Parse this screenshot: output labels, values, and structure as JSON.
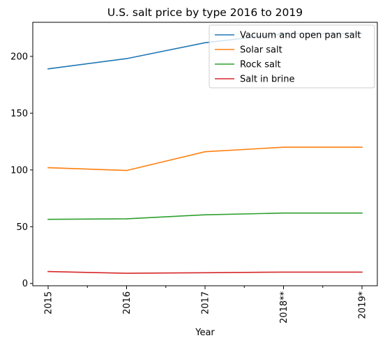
{
  "chart_data": {
    "type": "line",
    "title": "U.S. salt price by type 2016 to 2019",
    "xlabel": "Year",
    "ylabel": "",
    "categories": [
      "2015",
      "2016",
      "2017",
      "2018**",
      "2019*"
    ],
    "ylim": [
      -2,
      230
    ],
    "yticks": [
      0,
      50,
      100,
      150,
      200
    ],
    "grid": false,
    "legend_position": "top-right",
    "series": [
      {
        "name": "Vacuum and open pan salt",
        "color": "#1f77b4",
        "values": [
          189,
          198,
          212,
          220,
          220
        ]
      },
      {
        "name": "Solar salt",
        "color": "#ff7f0e",
        "values": [
          102,
          99.5,
          116,
          120,
          120
        ]
      },
      {
        "name": "Rock salt",
        "color": "#2ca02c",
        "values": [
          56.5,
          57,
          60.5,
          62,
          62
        ]
      },
      {
        "name": "Salt in brine",
        "color": "#d62728",
        "values": [
          10.5,
          9,
          9.5,
          10,
          10
        ]
      }
    ]
  }
}
